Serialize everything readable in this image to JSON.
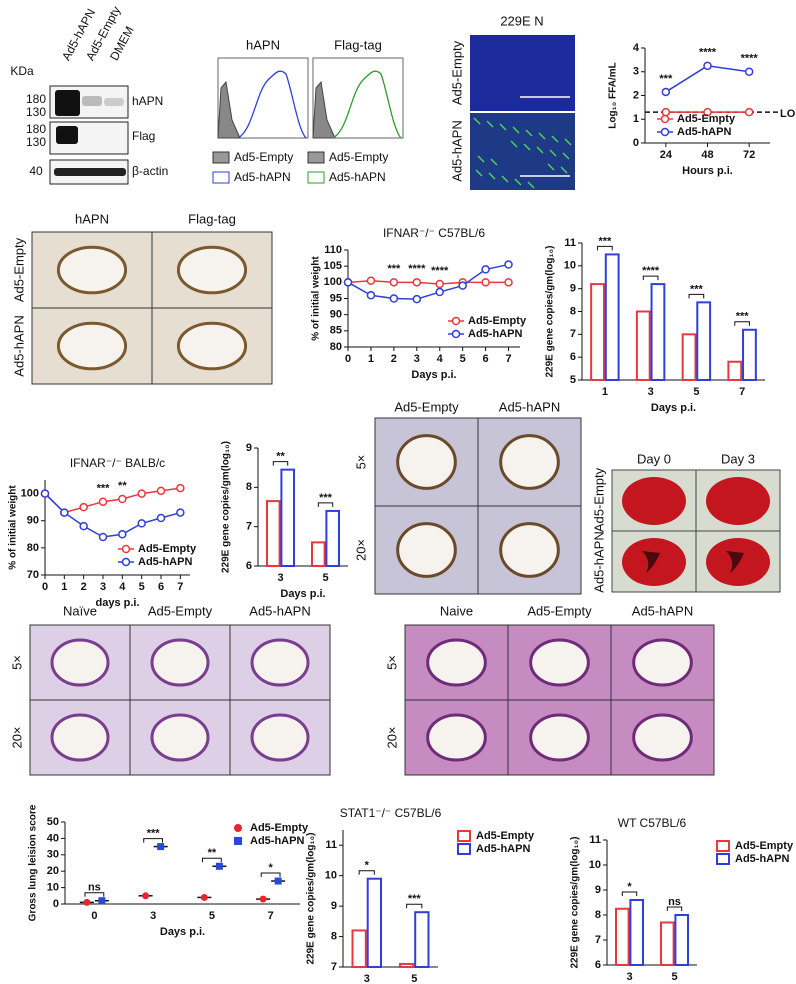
{
  "chart_data": [
    {
      "type": "line",
      "x": [
        24,
        48,
        72
      ],
      "xlim": [
        12,
        84
      ],
      "xticks": [
        24,
        48,
        72
      ],
      "ylim": [
        0,
        4
      ],
      "yticks": [
        0,
        1,
        2,
        3,
        4
      ],
      "xlabel": "Hours p.i.",
      "ylabel": "Log₁₀ FFA/mL",
      "legend": "lower-left",
      "series": [
        {
          "name": "Ad5-Empty",
          "color": "#e8383d",
          "values": [
            1.3,
            1.3,
            1.3
          ]
        },
        {
          "name": "Ad5-hAPN",
          "color": "#2f3fd8",
          "values": [
            2.15,
            3.25,
            3.0
          ]
        }
      ],
      "significance": [
        "***",
        "****",
        "****"
      ],
      "reference_line": {
        "value": 1.3,
        "label": "LOD"
      }
    },
    {
      "type": "line",
      "title": "IFNAR⁻/⁻ C57BL/6",
      "x": [
        0,
        1,
        2,
        3,
        4,
        5,
        6,
        7
      ],
      "xlim": [
        0,
        7.5
      ],
      "xticks": [
        0,
        1,
        2,
        3,
        4,
        5,
        6,
        7
      ],
      "ylim": [
        80,
        110
      ],
      "yticks": [
        80,
        85,
        90,
        95,
        100,
        105,
        110
      ],
      "xlabel": "Days p.i.",
      "ylabel": "% of initial weight",
      "legend": "lower-right",
      "series": [
        {
          "name": "Ad5-Empty",
          "color": "#e8383d",
          "values": [
            100,
            100.5,
            100,
            100,
            99.5,
            100,
            100,
            100
          ]
        },
        {
          "name": "Ad5-hAPN",
          "color": "#2f3fd8",
          "values": [
            100,
            96,
            95,
            94.8,
            97,
            99,
            104,
            105.5
          ]
        }
      ],
      "significance": [
        null,
        null,
        "***",
        "****",
        "****",
        null,
        null,
        null
      ]
    },
    {
      "type": "bar",
      "categories": [
        "1",
        "3",
        "5",
        "7"
      ],
      "ylim": [
        5,
        11
      ],
      "yticks": [
        5,
        6,
        7,
        8,
        9,
        10,
        11
      ],
      "xlabel": "Days p.i.",
      "ylabel": "229E gene copies/gm(log₁₀)",
      "series": [
        {
          "name": "Ad5-Empty",
          "color": "#e8383d",
          "values": [
            9.2,
            8.0,
            7.0,
            5.8
          ]
        },
        {
          "name": "Ad5-hAPN",
          "color": "#2f3fd8",
          "values": [
            10.5,
            9.2,
            8.4,
            7.2
          ]
        }
      ],
      "significance": [
        "***",
        "****",
        "***",
        "***"
      ]
    },
    {
      "type": "line",
      "title": "IFNAR⁻/⁻ BALB/c",
      "x": [
        0,
        1,
        2,
        3,
        4,
        5,
        6,
        7
      ],
      "xlim": [
        0,
        7.5
      ],
      "xticks": [
        0,
        1,
        2,
        3,
        4,
        5,
        6,
        7
      ],
      "ylim": [
        70,
        105
      ],
      "yticks": [
        70,
        80,
        90,
        100
      ],
      "xlabel": "days p.i.",
      "ylabel": "% of initial weight",
      "legend": "lower-right",
      "series": [
        {
          "name": "Ad5-Empty",
          "color": "#e8383d",
          "values": [
            100,
            93,
            95,
            97,
            98,
            100,
            101,
            102
          ]
        },
        {
          "name": "Ad5-hAPN",
          "color": "#2f3fd8",
          "values": [
            100,
            93,
            88,
            84,
            85,
            89,
            91,
            93
          ]
        }
      ],
      "significance": [
        null,
        null,
        null,
        "***",
        "**",
        null,
        null,
        null
      ]
    },
    {
      "type": "bar",
      "categories": [
        "3",
        "5"
      ],
      "ylim": [
        6,
        9
      ],
      "yticks": [
        6,
        7,
        8,
        9
      ],
      "xlabel": "Days p.i.",
      "ylabel": "229E gene copies/gm(log₁₀)",
      "series": [
        {
          "name": "Ad5-Empty",
          "color": "#e8383d",
          "values": [
            7.65,
            6.6
          ]
        },
        {
          "name": "Ad5-hAPN",
          "color": "#2f3fd8",
          "values": [
            8.45,
            7.4
          ]
        }
      ],
      "significance": [
        "**",
        "***"
      ]
    },
    {
      "type": "scatter",
      "categories": [
        "0",
        "3",
        "5",
        "7"
      ],
      "ylim": [
        0,
        50
      ],
      "yticks": [
        0,
        10,
        20,
        30,
        40,
        50
      ],
      "xlabel": "Days p.i.",
      "ylabel": "Gross lung leision score",
      "legend": "upper-right",
      "series": [
        {
          "name": "Ad5-Empty",
          "color": "#e8252c",
          "marker": "circle",
          "values": [
            1,
            5,
            4,
            3
          ]
        },
        {
          "name": "Ad5-hAPN",
          "color": "#2848d8",
          "marker": "square",
          "values": [
            2,
            35,
            23,
            14
          ]
        }
      ],
      "significance": [
        "ns",
        "***",
        "**",
        "*"
      ]
    },
    {
      "type": "bar",
      "title": "STAT1⁻/⁻ C57BL/6",
      "categories": [
        "3",
        "5"
      ],
      "ylim": [
        7,
        11.5
      ],
      "yticks": [
        7,
        8,
        9,
        10,
        11
      ],
      "xlabel": "Days p.i.",
      "ylabel": "229E gene copies/gm(log₁₀)",
      "legend": "outside-right",
      "series": [
        {
          "name": "Ad5-Empty",
          "color": "#e8383d",
          "values": [
            8.2,
            7.1
          ]
        },
        {
          "name": "Ad5-hAPN",
          "color": "#2f3fd8",
          "values": [
            9.9,
            8.8
          ]
        }
      ],
      "significance": [
        "*",
        "***"
      ]
    },
    {
      "type": "bar",
      "title": "WT  C57BL/6",
      "categories": [
        "3",
        "5"
      ],
      "ylim": [
        6,
        11
      ],
      "yticks": [
        6,
        7,
        8,
        9,
        10,
        11
      ],
      "xlabel": "Days p.i.",
      "ylabel": "229E gene copies/gm(log₁₀)",
      "legend": "outside-right",
      "series": [
        {
          "name": "Ad5-Empty",
          "color": "#e8383d",
          "values": [
            8.25,
            7.7
          ]
        },
        {
          "name": "Ad5-hAPN",
          "color": "#2f3fd8",
          "values": [
            8.6,
            8.0
          ]
        }
      ],
      "significance": [
        "*",
        "ns"
      ]
    }
  ],
  "blot": {
    "unit": "KDa",
    "lanes": [
      "Ad5-hAPN",
      "Ad5-Empty",
      "DMEM"
    ],
    "markers": [
      "180",
      "130",
      "180",
      "130",
      "40"
    ],
    "bands": [
      "hAPN",
      "Flag",
      "β-actin"
    ]
  },
  "flow": {
    "titles": [
      "hAPN",
      "Flag-tag"
    ],
    "legend": [
      [
        "Ad5-Empty",
        "Ad5-hAPN"
      ],
      [
        "Ad5-Empty",
        "Ad5-hAPN"
      ]
    ]
  },
  "if_stain": {
    "title": "229E N",
    "rows": [
      "Ad5-Empty",
      "Ad5-hAPN"
    ]
  },
  "ihc": {
    "columns": [
      "hAPN",
      "Flag-tag"
    ],
    "rows": [
      "Ad5-Empty",
      "Ad5-hAPN"
    ]
  },
  "ihc2": {
    "columns": [
      "Ad5-Empty",
      "Ad5-hAPN"
    ],
    "rows": [
      "5×",
      "20×"
    ]
  },
  "gross": {
    "columns": [
      "Day 0",
      "Day 3"
    ],
    "rows": [
      "Ad5-Empty",
      "Ad5-hAPN"
    ]
  },
  "he_left": {
    "columns": [
      "Naïve",
      "Ad5-Empty",
      "Ad5-hAPN"
    ],
    "rows": [
      "5×",
      "20×"
    ]
  },
  "he_right": {
    "columns": [
      "Naive",
      "Ad5-Empty",
      "Ad5-hAPN"
    ],
    "rows": [
      "5×",
      "20×"
    ]
  }
}
